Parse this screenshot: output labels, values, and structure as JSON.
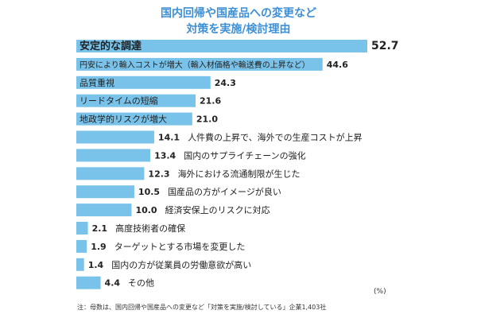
{
  "title_line1": "国内回帰や国産品への変更など",
  "title_line2": "対策を実施/検討理由",
  "unit": "(%)",
  "footnote": "注：母数は、国内回帰や国産品への変更など「対策を実施/検討している」企業1,403社",
  "colors": {
    "bar": "#79c3ea",
    "title": "#3d8fd6",
    "text": "#222222"
  },
  "chart_data": {
    "type": "bar",
    "orientation": "horizontal",
    "categories": [
      "安定的な調達",
      "円安により輸入コストが増大（輸入材価格や輸送費の上昇など）",
      "品質重視",
      "リードタイムの短縮",
      "地政学的リスクが増大",
      "人件費の上昇で、海外での生産コストが上昇",
      "国内のサプライチェーンの強化",
      "海外における流通制限が生じた",
      "国産品の方がイメージが良い",
      "経済安保上のリスクに対応",
      "高度技術者の確保",
      "ターゲットとする市場を変更した",
      "国内の方が従業員の労働意欲が高い",
      "その他"
    ],
    "values": [
      52.7,
      44.6,
      24.3,
      21.6,
      21.0,
      14.1,
      13.4,
      12.3,
      10.5,
      10.0,
      2.1,
      1.9,
      1.4,
      4.4
    ],
    "value_labels": [
      "52.7",
      "44.6",
      "24.3",
      "21.6",
      "21.0",
      "14.1",
      "13.4",
      "12.3",
      "10.5",
      "10.0",
      "2.1",
      "1.9",
      "1.4",
      "4.4"
    ],
    "xlim": [
      0,
      52.7
    ],
    "grid": false,
    "legend": "none",
    "label_position": "inside-bar-when-fits"
  }
}
